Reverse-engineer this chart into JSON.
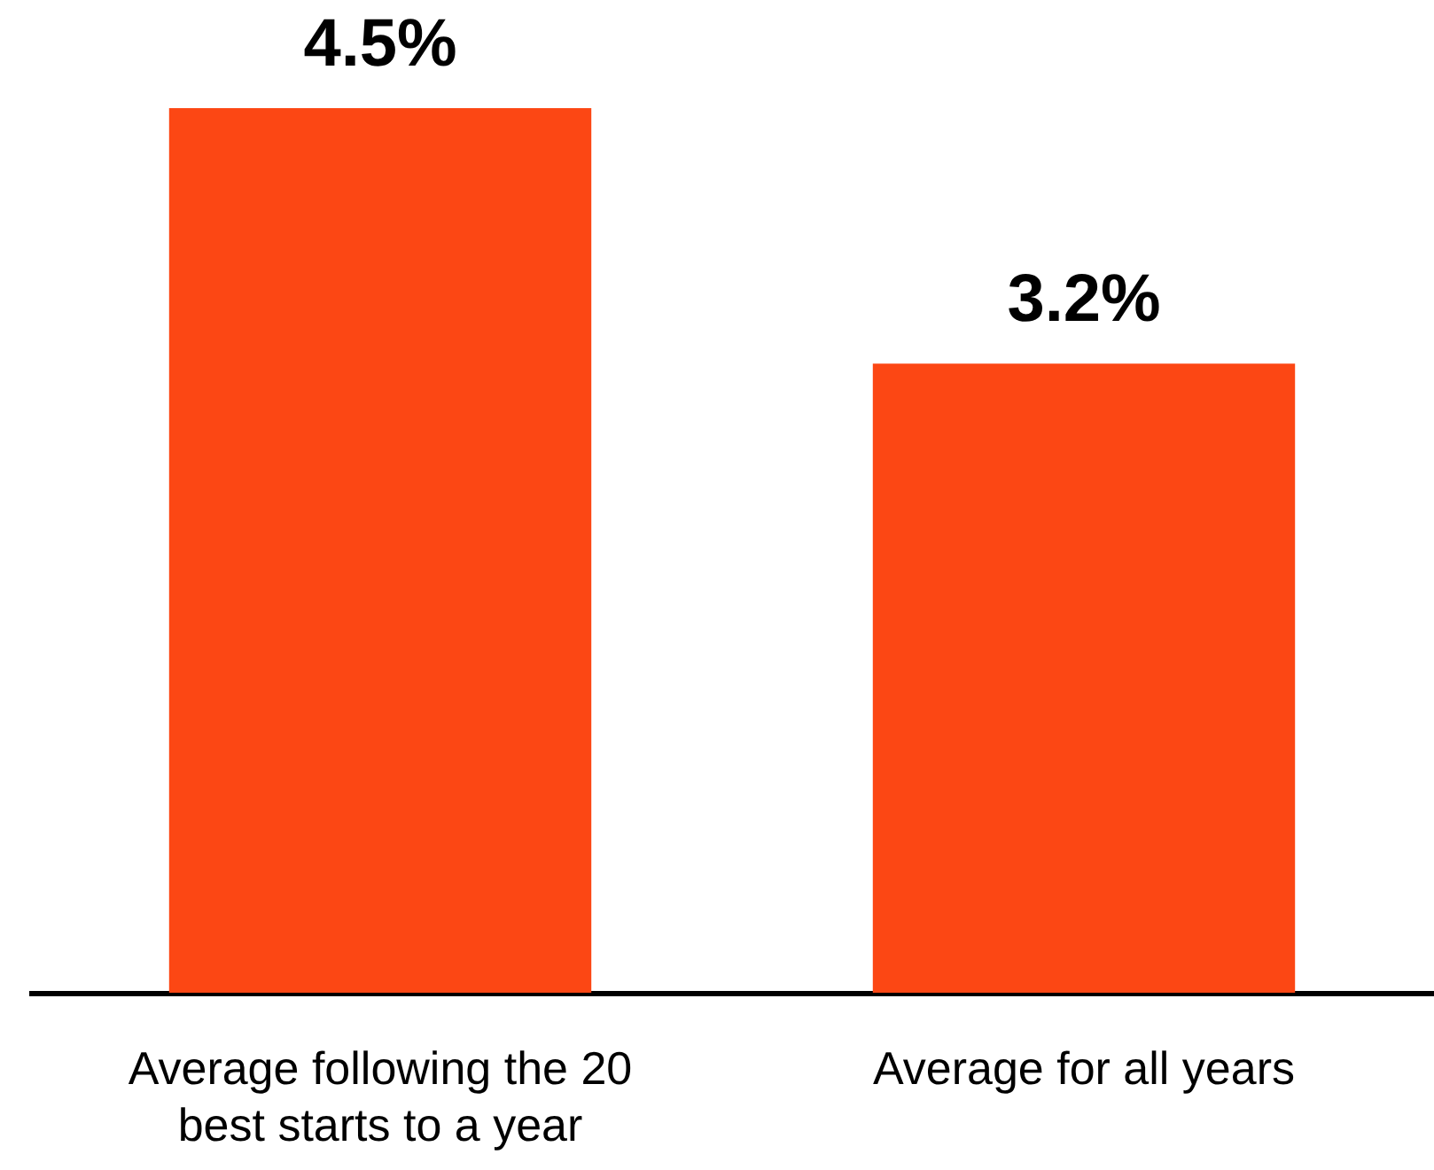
{
  "chart_data": {
    "type": "bar",
    "categories": [
      "Average following the 20 best starts to a year",
      "Average for all years"
    ],
    "values": [
      4.5,
      3.2
    ],
    "value_labels": [
      "4.5%",
      "3.2%"
    ],
    "color": "#fc4714"
  }
}
